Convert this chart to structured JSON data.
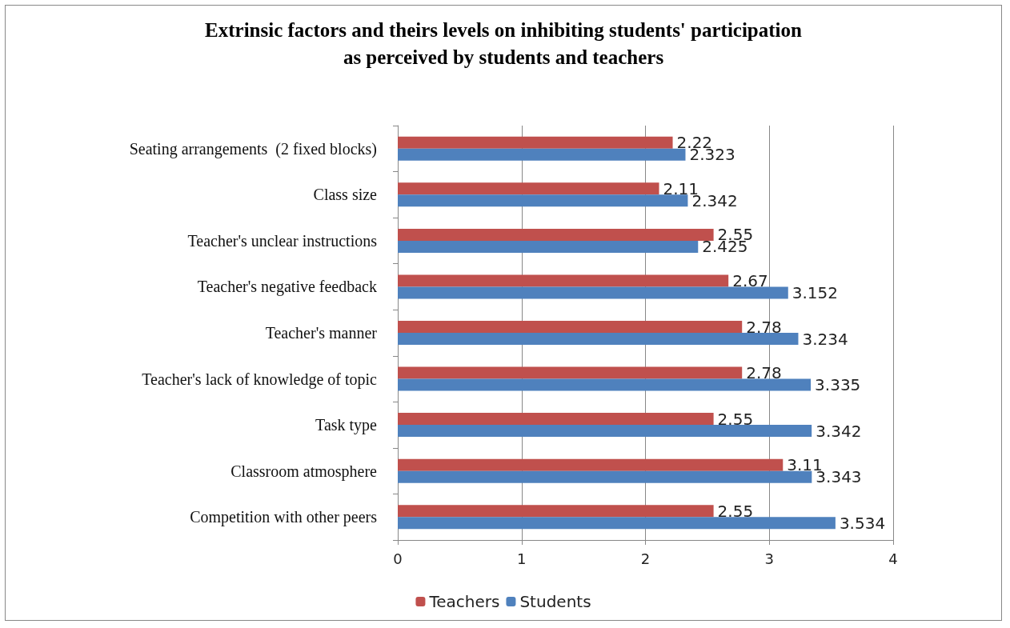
{
  "chart_data": {
    "type": "bar",
    "orientation": "horizontal",
    "title": "Extrinsic factors and theirs levels on inhibiting students' participation\nas perceived by students and teachers",
    "categories": [
      "Seating arrangements  (2 fixed blocks)",
      "Class size",
      "Teacher's unclear instructions",
      "Teacher's negative feedback",
      "Teacher's manner",
      "Teacher's lack of knowledge of topic",
      "Task type",
      "Classroom atmosphere",
      "Competition with other peers"
    ],
    "series": [
      {
        "name": "Teachers",
        "color": "#c0504d",
        "values": [
          2.22,
          2.11,
          2.55,
          2.67,
          2.78,
          2.78,
          2.55,
          3.11,
          2.55
        ]
      },
      {
        "name": "Students",
        "color": "#4f81bd",
        "values": [
          2.323,
          2.342,
          2.425,
          3.152,
          3.234,
          3.335,
          3.342,
          3.343,
          3.534
        ]
      }
    ],
    "xlim": [
      0,
      4
    ],
    "xticks": [
      0,
      1,
      2,
      3,
      4
    ],
    "grid": "x",
    "legend": "bottom",
    "data_labels": true
  }
}
